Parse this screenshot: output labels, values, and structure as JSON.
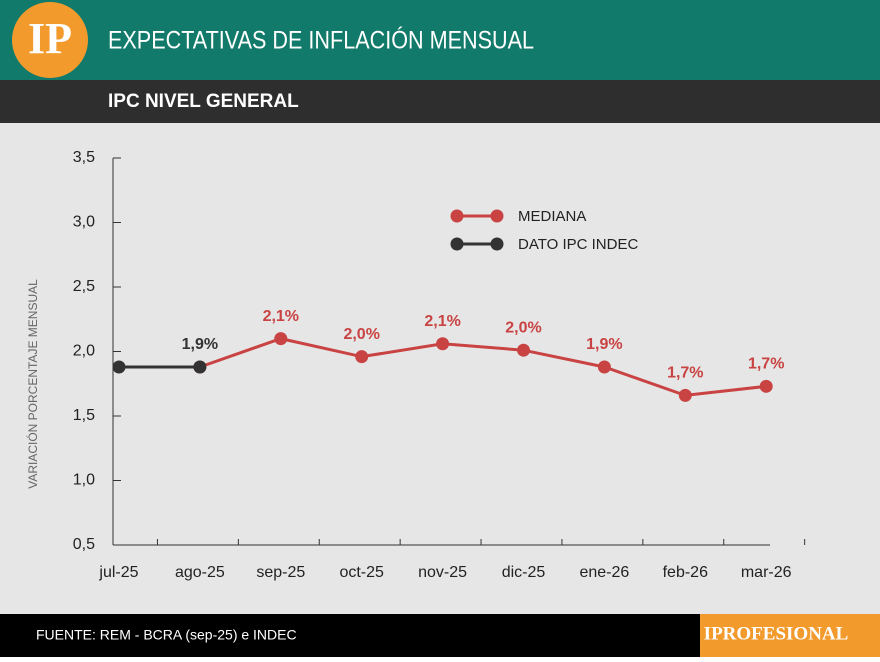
{
  "header": {
    "logo": "IP",
    "title": "EXPECTATIVAS DE INFLACIÓN MENSUAL",
    "subtitle": "IPC NIVEL GENERAL"
  },
  "footer": {
    "source": "FUENTE: REM - BCRA (sep-25) e INDEC",
    "brand": "IPROFESIONAL"
  },
  "chart_data": {
    "type": "line",
    "y_label": "VARIACIÓN  PORCENTAJE  MENSUAL",
    "categories": [
      "jul-25",
      "ago-25",
      "sep-25",
      "oct-25",
      "nov-25",
      "dic-25",
      "ene-26",
      "feb-26",
      "mar-26"
    ],
    "series": [
      {
        "name": "MEDIANA",
        "color": "#c94343",
        "values": [
          null,
          1.88,
          2.1,
          1.96,
          2.06,
          2.01,
          1.88,
          1.66,
          1.73
        ],
        "value_labels": [
          null,
          null,
          "2,1%",
          "2,0%",
          "2,1%",
          "2,0%",
          "1,9%",
          "1,7%",
          "1,7%"
        ]
      },
      {
        "name": "DATO IPC INDEC",
        "color": "#333333",
        "values": [
          1.88,
          1.88,
          null,
          null,
          null,
          null,
          null,
          null,
          null
        ],
        "value_labels": [
          null,
          "1,9%",
          null,
          null,
          null,
          null,
          null,
          null,
          null
        ]
      }
    ],
    "ylim": [
      0.5,
      3.5
    ],
    "yticks": [
      {
        "value": 0.5,
        "label": "0,5"
      },
      {
        "value": 1,
        "label": "1,0"
      },
      {
        "value": 1.5,
        "label": "1,5"
      },
      {
        "value": 2,
        "label": "2,0"
      },
      {
        "value": 2.5,
        "label": "2,5"
      },
      {
        "value": 3,
        "label": "3,0"
      },
      {
        "value": 3.5,
        "label": "3,5"
      }
    ],
    "legend": "top-center",
    "grid": false
  }
}
